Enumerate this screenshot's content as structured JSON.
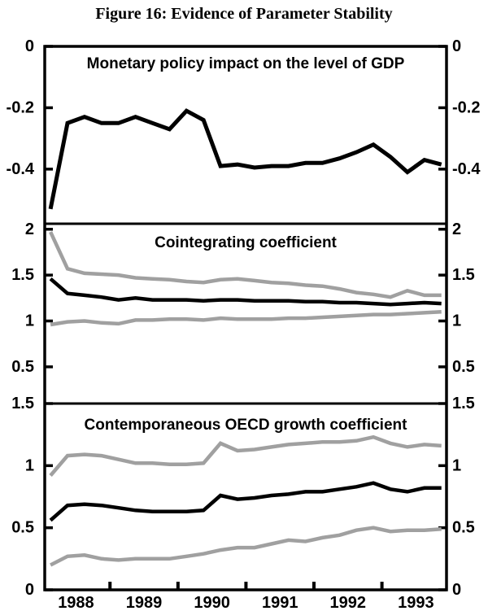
{
  "figure_title": "Figure 16: Evidence of Parameter Stability",
  "colors": {
    "line_black": "#000000",
    "line_gray": "#a0a0a0",
    "frame": "#000000",
    "text": "#000000",
    "background": "#ffffff"
  },
  "x_axis": {
    "xlim": [
      1988.04,
      1993.95
    ],
    "points_start": 1988.125,
    "points_step": 0.25,
    "tick_positions": [
      1989,
      1990,
      1991,
      1992,
      1993
    ],
    "year_labels": [
      {
        "text": "1988",
        "x": 1988.5
      },
      {
        "text": "1989",
        "x": 1989.5
      },
      {
        "text": "1990",
        "x": 1990.5
      },
      {
        "text": "1991",
        "x": 1991.5
      },
      {
        "text": "1992",
        "x": 1992.5
      },
      {
        "text": "1993",
        "x": 1993.5
      }
    ]
  },
  "chart_data": [
    {
      "type": "line",
      "title": "Monetary policy impact on the level of GDP",
      "ylim": [
        -0.578,
        0
      ],
      "yticks": [
        {
          "v": 0,
          "label": "0"
        },
        {
          "v": -0.2,
          "label": "-0.2"
        },
        {
          "v": -0.4,
          "label": "-0.4"
        }
      ],
      "series": [
        {
          "name": "monetary-policy-impact",
          "color": "black",
          "width": 5,
          "values": [
            -0.53,
            -0.25,
            -0.23,
            -0.25,
            -0.25,
            -0.23,
            -0.25,
            -0.27,
            -0.21,
            -0.24,
            -0.39,
            -0.385,
            -0.395,
            -0.39,
            -0.39,
            -0.38,
            -0.38,
            -0.365,
            -0.345,
            -0.32,
            -0.36,
            -0.41,
            -0.37,
            -0.385
          ]
        }
      ]
    },
    {
      "type": "line",
      "title": "Cointegrating coefficient",
      "ylim": [
        0.1,
        2.06
      ],
      "yticks": [
        {
          "v": 2,
          "label": "2"
        },
        {
          "v": 1.5,
          "label": "1.5"
        },
        {
          "v": 1,
          "label": "1"
        },
        {
          "v": 0.5,
          "label": "0.5"
        }
      ],
      "series": [
        {
          "name": "upper-band",
          "color": "gray",
          "width": 4.5,
          "values": [
            1.97,
            1.57,
            1.52,
            1.51,
            1.5,
            1.47,
            1.46,
            1.45,
            1.43,
            1.42,
            1.45,
            1.46,
            1.44,
            1.42,
            1.41,
            1.39,
            1.38,
            1.35,
            1.31,
            1.29,
            1.26,
            1.33,
            1.28,
            1.28
          ]
        },
        {
          "name": "cointegrating-coefficient",
          "color": "black",
          "width": 4.5,
          "values": [
            1.46,
            1.3,
            1.28,
            1.26,
            1.23,
            1.25,
            1.23,
            1.23,
            1.23,
            1.22,
            1.23,
            1.23,
            1.22,
            1.22,
            1.22,
            1.21,
            1.21,
            1.2,
            1.2,
            1.19,
            1.18,
            1.19,
            1.2,
            1.19
          ]
        },
        {
          "name": "lower-band",
          "color": "gray",
          "width": 4.5,
          "values": [
            0.96,
            0.99,
            1.0,
            0.98,
            0.97,
            1.01,
            1.01,
            1.02,
            1.02,
            1.01,
            1.03,
            1.02,
            1.02,
            1.02,
            1.03,
            1.03,
            1.04,
            1.05,
            1.06,
            1.07,
            1.07,
            1.08,
            1.09,
            1.1
          ]
        }
      ]
    },
    {
      "type": "line",
      "title": "Contemporaneous OECD growth coefficient",
      "ylim": [
        0,
        1.5
      ],
      "yticks": [
        {
          "v": 1.5,
          "label": "1.5"
        },
        {
          "v": 1,
          "label": "1"
        },
        {
          "v": 0.5,
          "label": "0.5"
        },
        {
          "v": 0,
          "label": "0"
        }
      ],
      "series": [
        {
          "name": "upper-band",
          "color": "gray",
          "width": 4.5,
          "values": [
            0.92,
            1.08,
            1.09,
            1.08,
            1.05,
            1.02,
            1.02,
            1.01,
            1.01,
            1.02,
            1.18,
            1.12,
            1.13,
            1.15,
            1.17,
            1.18,
            1.19,
            1.19,
            1.2,
            1.23,
            1.18,
            1.15,
            1.17,
            1.16
          ]
        },
        {
          "name": "oecd-growth-coefficient",
          "color": "black",
          "width": 4.5,
          "values": [
            0.56,
            0.68,
            0.69,
            0.68,
            0.66,
            0.64,
            0.63,
            0.63,
            0.63,
            0.64,
            0.76,
            0.73,
            0.74,
            0.76,
            0.77,
            0.79,
            0.79,
            0.81,
            0.83,
            0.86,
            0.81,
            0.79,
            0.82,
            0.82
          ]
        },
        {
          "name": "lower-band",
          "color": "gray",
          "width": 4.5,
          "values": [
            0.2,
            0.27,
            0.28,
            0.25,
            0.24,
            0.25,
            0.25,
            0.25,
            0.27,
            0.29,
            0.32,
            0.34,
            0.34,
            0.37,
            0.4,
            0.39,
            0.42,
            0.44,
            0.48,
            0.5,
            0.47,
            0.48,
            0.48,
            0.49
          ]
        }
      ]
    }
  ]
}
